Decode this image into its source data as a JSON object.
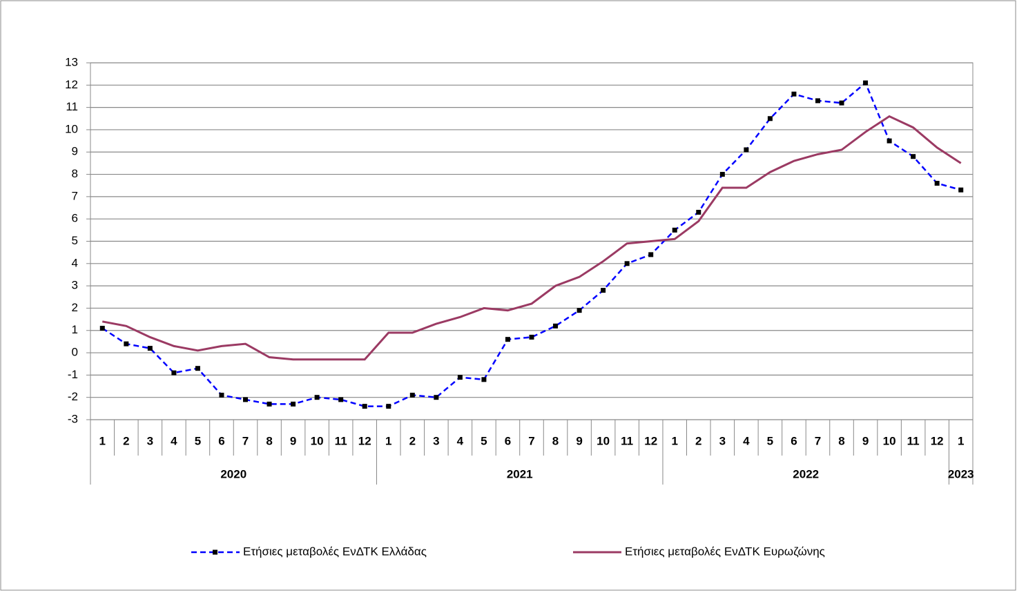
{
  "chart_data": {
    "type": "line",
    "categories": [
      "1",
      "2",
      "3",
      "4",
      "5",
      "6",
      "7",
      "8",
      "9",
      "10",
      "11",
      "12",
      "1",
      "2",
      "3",
      "4",
      "5",
      "6",
      "7",
      "8",
      "9",
      "10",
      "11",
      "12",
      "1",
      "2",
      "3",
      "4",
      "5",
      "6",
      "7",
      "8",
      "9",
      "10",
      "11",
      "12",
      "1"
    ],
    "groups": [
      "2020",
      "2021",
      "2022",
      "2023"
    ],
    "series": [
      {
        "name": "Ετήσιες μεταβολές ΕνΔΤΚ Ελλάδας",
        "color": "#0000ff",
        "dash": true,
        "marker": "square",
        "marker_color": "#000000",
        "values": [
          1.1,
          0.4,
          0.2,
          -0.9,
          -0.7,
          -1.9,
          -2.1,
          -2.3,
          -2.3,
          -2.0,
          -2.1,
          -2.4,
          -2.4,
          -1.9,
          -2.0,
          -1.1,
          -1.2,
          0.6,
          0.7,
          1.2,
          1.9,
          2.8,
          4.0,
          4.4,
          5.5,
          6.3,
          8.0,
          9.1,
          10.5,
          11.6,
          11.3,
          11.2,
          12.1,
          9.5,
          8.8,
          7.6,
          7.3
        ]
      },
      {
        "name": "Ετήσιες μεταβολές ΕνΔΤΚ Ευρωζώνης",
        "color": "#9b3a63",
        "dash": false,
        "values": [
          1.4,
          1.2,
          0.7,
          0.3,
          0.1,
          0.3,
          0.4,
          -0.2,
          -0.3,
          -0.3,
          -0.3,
          -0.3,
          0.9,
          0.9,
          1.3,
          1.6,
          2.0,
          1.9,
          2.2,
          3.0,
          3.4,
          4.1,
          4.9,
          5.0,
          5.1,
          5.9,
          7.4,
          7.4,
          8.1,
          8.6,
          8.9,
          9.1,
          9.9,
          10.6,
          10.1,
          9.2,
          8.5
        ]
      }
    ],
    "ylim": [
      -3,
      13
    ],
    "yticks": [
      -3,
      -2,
      -1,
      0,
      1,
      2,
      3,
      4,
      5,
      6,
      7,
      8,
      9,
      10,
      11,
      12,
      13
    ],
    "grid": true,
    "legend": "bottom"
  }
}
